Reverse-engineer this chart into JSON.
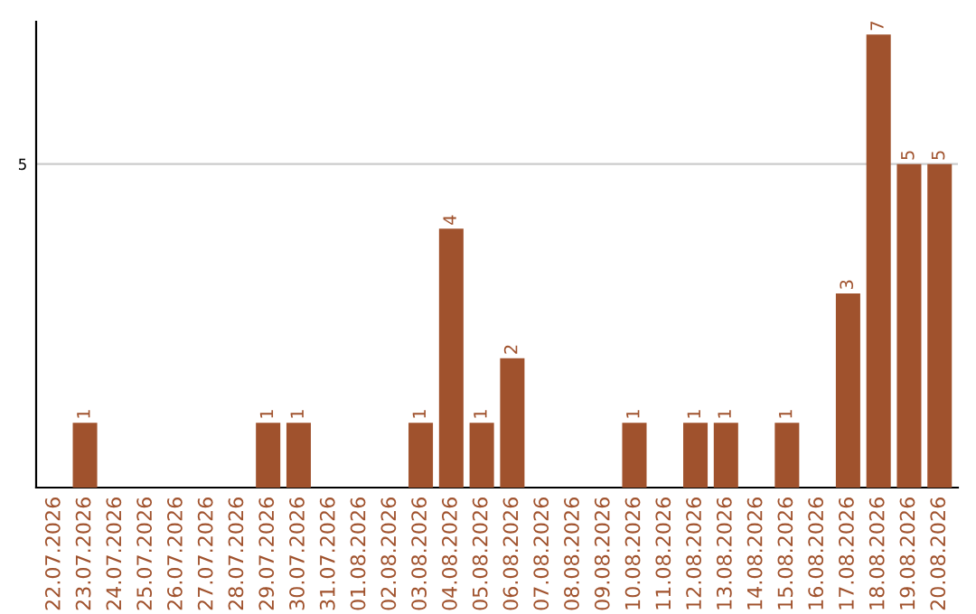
{
  "chart_data": {
    "type": "bar",
    "categories": [
      "22.07.2026",
      "23.07.2026",
      "24.07.2026",
      "25.07.2026",
      "26.07.2026",
      "27.07.2026",
      "28.07.2026",
      "29.07.2026",
      "30.07.2026",
      "31.07.2026",
      "01.08.2026",
      "02.08.2026",
      "03.08.2026",
      "04.08.2026",
      "05.08.2026",
      "06.08.2026",
      "07.08.2026",
      "08.08.2026",
      "09.08.2026",
      "10.08.2026",
      "11.08.2026",
      "12.08.2026",
      "13.08.2026",
      "14.08.2026",
      "15.08.2026",
      "16.08.2026",
      "17.08.2026",
      "18.08.2026",
      "19.08.2026",
      "20.08.2026"
    ],
    "values": [
      null,
      1,
      null,
      null,
      null,
      null,
      null,
      1,
      1,
      null,
      null,
      null,
      1,
      4,
      1,
      2,
      null,
      null,
      null,
      1,
      null,
      1,
      1,
      null,
      1,
      null,
      3,
      7,
      5,
      5
    ],
    "color": "#a0522d",
    "ylim": [
      0,
      7.2
    ],
    "yticks": [
      5
    ],
    "grid": "y",
    "data_labels": true
  }
}
